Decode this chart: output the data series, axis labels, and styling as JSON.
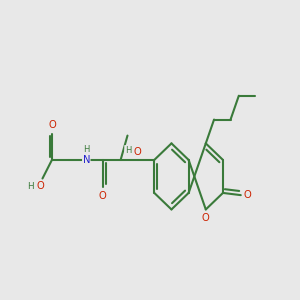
{
  "bg_color": "#e8e8e8",
  "bond_color": "#3a7a3a",
  "O_color": "#cc2200",
  "N_color": "#2222cc",
  "C_color": "#3a7a3a",
  "lw": 1.5,
  "fs": 7.2,
  "r_hex": 0.6,
  "lc_x": 5.95,
  "lc_y": 5.02,
  "bl": 0.52,
  "xlim": [
    0.8,
    9.8
  ],
  "ylim": [
    2.8,
    8.2
  ]
}
